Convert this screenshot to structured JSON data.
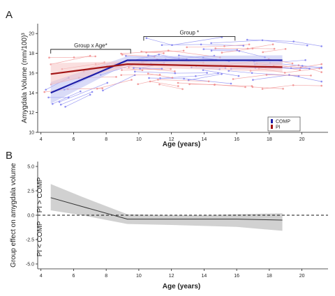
{
  "colors": {
    "comp": "#1f1fa8",
    "pi": "#a31515",
    "comp_light": "#7c7cf0",
    "pi_light": "#f08c8c",
    "comp_band": "#b9bdf2",
    "pi_band": "#f6c4c4",
    "effect_band": "#cccccc",
    "effect_line": "#333333",
    "axis": "#222222"
  },
  "panels": [
    {
      "letter": "A",
      "ylabel": "Amygdala Volume (mm/100)³",
      "xlabel": "Age (years)",
      "annotations": [
        {
          "label": "Group x Age*",
          "x_start": 4.6,
          "x_end": 9.5,
          "y": 18.4
        },
        {
          "label": "Group *",
          "x_start": 10.3,
          "x_end": 15.9,
          "y": 19.7
        }
      ],
      "legend": {
        "position": "bottom-right",
        "entries": [
          "COMP",
          "PI"
        ]
      }
    },
    {
      "letter": "B",
      "ylabel": "Group effect on amygdala volume",
      "xlabel": "Age (years)",
      "upper_label": "PI > COMP",
      "lower_label": "PI < COMP"
    }
  ],
  "chart_data": [
    {
      "type": "line",
      "title": "",
      "xlabel": "Age (years)",
      "ylabel": "Amygdala Volume (mm/100)³",
      "xlim": [
        3.8,
        21.6
      ],
      "ylim": [
        10,
        21
      ],
      "xticks": [
        4,
        6,
        8,
        10,
        12,
        14,
        16,
        18,
        20
      ],
      "yticks": [
        10,
        12,
        14,
        16,
        18,
        20
      ],
      "grid": false,
      "legend": "bottom-right",
      "series": [
        {
          "name": "COMP",
          "x": [
            4.6,
            9.3,
            18.8
          ],
          "y": [
            14.0,
            17.3,
            17.3
          ],
          "band_lower": [
            12.9,
            16.9,
            16.8
          ],
          "band_upper": [
            15.1,
            17.7,
            17.8
          ]
        },
        {
          "name": "PI",
          "x": [
            4.6,
            9.3,
            18.8
          ],
          "y": [
            15.9,
            16.9,
            16.6
          ],
          "band_lower": [
            14.8,
            16.6,
            16.1
          ],
          "band_upper": [
            17.0,
            17.2,
            17.1
          ]
        }
      ]
    },
    {
      "type": "line",
      "title": "",
      "xlabel": "Age (years)",
      "ylabel": "Group effect on amygdala volume",
      "xlim": [
        3.8,
        21.6
      ],
      "ylim": [
        -5.5,
        5.5
      ],
      "xticks": [
        4,
        6,
        8,
        10,
        12,
        14,
        16,
        18,
        20
      ],
      "yticks": [
        -5.0,
        -2.5,
        0.0,
        2.5,
        5.0
      ],
      "ytick_labels": [
        "-5.0",
        "-2.5",
        "0.0",
        "2.5",
        "5.0"
      ],
      "reference_line": 0.0,
      "grid": false,
      "series": [
        {
          "x": [
            4.6,
            6.5,
            9.3,
            12.0,
            14.0,
            16.0,
            18.8
          ],
          "y": [
            1.8,
            0.9,
            -0.4,
            -0.4,
            -0.4,
            -0.4,
            -0.5
          ],
          "band_lower": [
            0.5,
            0.0,
            -0.9,
            -1.0,
            -1.1,
            -1.2,
            -1.6
          ],
          "band_upper": [
            3.2,
            1.9,
            0.1,
            0.0,
            0.0,
            0.1,
            0.2
          ]
        }
      ]
    }
  ]
}
